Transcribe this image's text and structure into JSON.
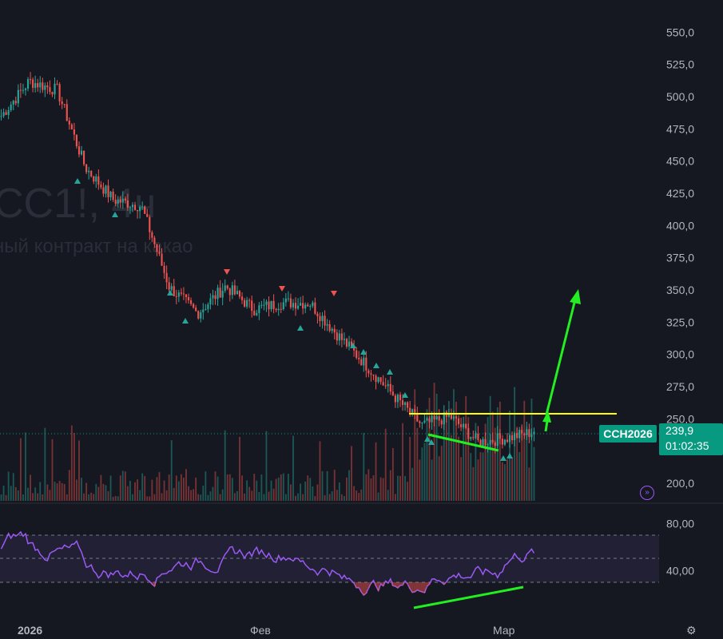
{
  "watermark": {
    "symbol": "CC1!, 4ч",
    "description": "ный контракт на какао"
  },
  "price_axis": {
    "ticks": [
      "550,0",
      "525,0",
      "500,0",
      "475,0",
      "450,0",
      "425,0",
      "400,0",
      "375,0",
      "350,0",
      "325,0",
      "300,0",
      "275,0",
      "250,0",
      "200,0"
    ]
  },
  "rsi_axis": {
    "ticks": [
      "80,00",
      "40,00"
    ]
  },
  "time_axis": {
    "labels": [
      "2026",
      "Фев",
      "Мар"
    ]
  },
  "badge": {
    "symbol": "CCH2026",
    "price": "239,9",
    "countdown": "01:02:35"
  },
  "colors": {
    "up": "#26a69a",
    "down": "#ef5350",
    "background": "#151820",
    "rsi_line": "#9b59f5",
    "rsi_band": "#7e57c2",
    "annotation_yellow": "#ffff00",
    "annotation_green": "#22ee22",
    "badge": "#089981"
  },
  "icons": {
    "goto_realtime": "double-chevron-right-icon",
    "settings": "gear-icon"
  },
  "chart_data": {
    "type": "candlestick",
    "price_range": [
      190,
      575
    ],
    "approx_close_path": [
      {
        "x": "early Jan",
        "y": 485
      },
      {
        "x": "Jan 2026",
        "y": 512
      },
      {
        "x": "",
        "y": 505
      },
      {
        "x": "",
        "y": 445
      },
      {
        "x": "",
        "y": 420
      },
      {
        "x": "",
        "y": 415
      },
      {
        "x": "",
        "y": 352
      },
      {
        "x": "",
        "y": 332
      },
      {
        "x": "",
        "y": 353
      },
      {
        "x": "",
        "y": 335
      },
      {
        "x": "Фев",
        "y": 340
      },
      {
        "x": "",
        "y": 340
      },
      {
        "x": "",
        "y": 315
      },
      {
        "x": "",
        "y": 292
      },
      {
        "x": "",
        "y": 268
      },
      {
        "x": "",
        "y": 245
      },
      {
        "x": "",
        "y": 252
      },
      {
        "x": "",
        "y": 232
      },
      {
        "x": "Мар",
        "y": 235
      },
      {
        "x": "",
        "y": 239.9
      }
    ],
    "last_price": 239.9,
    "horizontal_line": 255,
    "rsi": {
      "range": [
        20,
        90
      ],
      "band": [
        30,
        70
      ],
      "midline": 50
    }
  }
}
